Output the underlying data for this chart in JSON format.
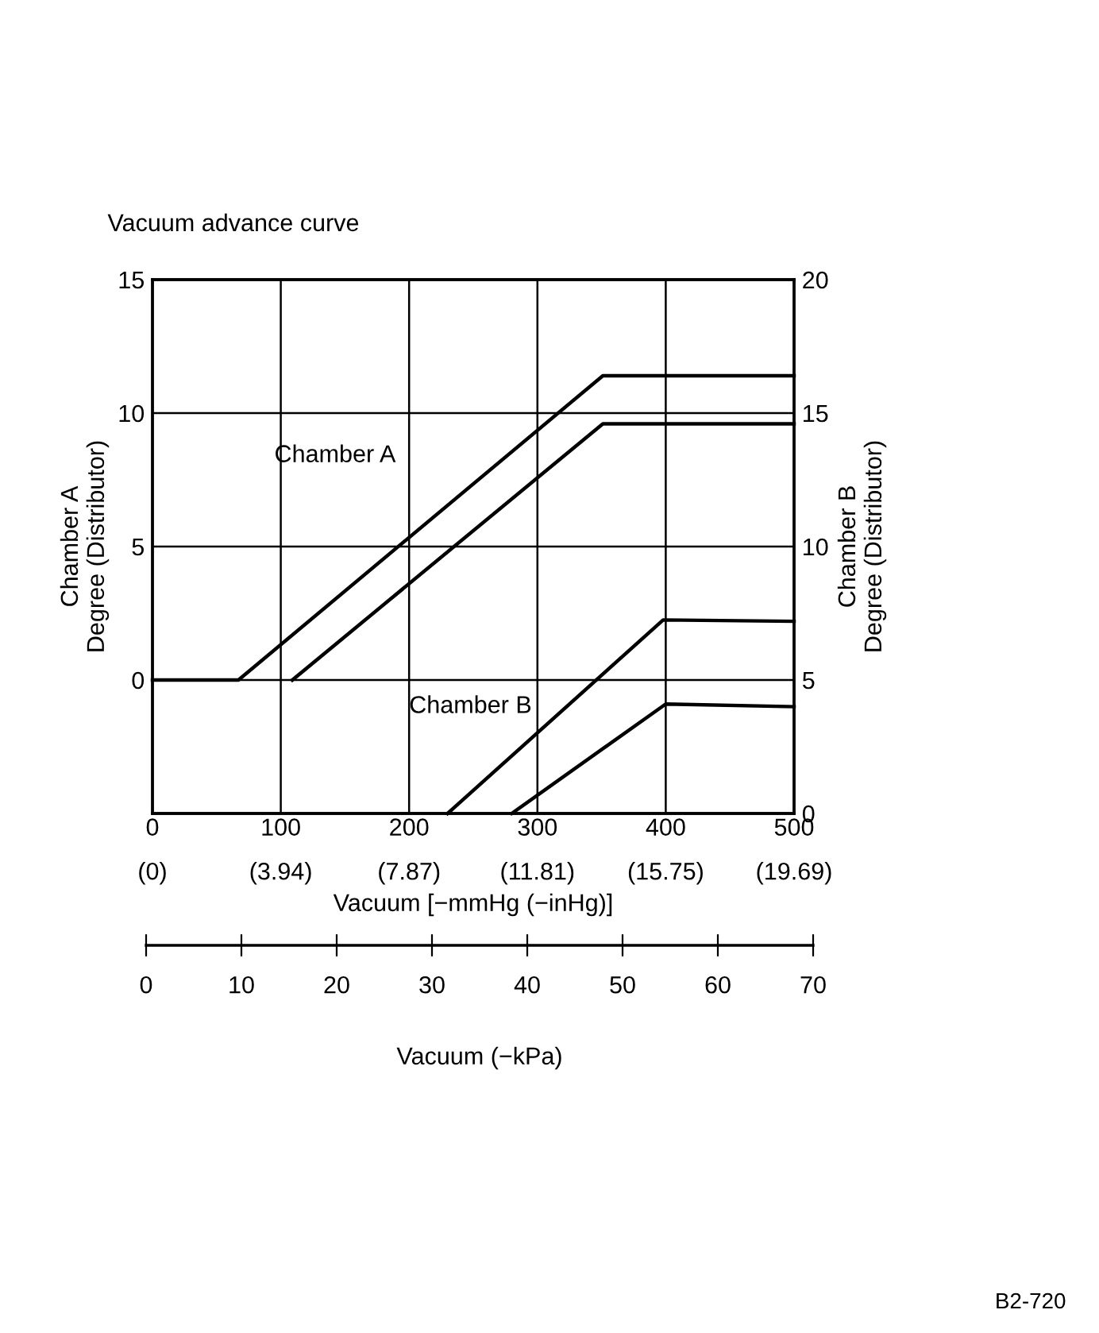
{
  "chart_data": {
    "type": "line",
    "title": "Vacuum advance curve",
    "xlabel": "Vacuum [−mmHg (−inHg)]",
    "ylabel": "Chamber A\nDegree (Distributor)",
    "y2label": "Chamber B\nDegree (Distributor)",
    "x2label": "Vacuum (−kPa)",
    "series": [
      {
        "x": [
          0,
          67,
          351,
          500
        ],
        "values": [
          0,
          0,
          11.4,
          11.4
        ],
        "color": "#000000"
      },
      {
        "x": [
          109,
          351,
          500
        ],
        "values": [
          0,
          9.6,
          9.6
        ],
        "color": "#000000"
      },
      {
        "x": [
          230,
          398,
          500
        ],
        "values": [
          0,
          7.25,
          7.2
        ],
        "color": "#000000",
        "axis": "y2"
      },
      {
        "x": [
          280,
          400,
          500
        ],
        "values": [
          0,
          4.1,
          4.0
        ],
        "color": "#000000",
        "axis": "y2"
      }
    ],
    "xlim": [
      0,
      500
    ],
    "xticks": [
      0,
      100,
      200,
      300,
      400,
      500
    ],
    "ylim": [
      -5,
      15
    ],
    "yticks": [
      0,
      5,
      10,
      15
    ],
    "y2lim": [
      0,
      20
    ],
    "y2ticks": [
      0,
      5,
      10,
      15,
      20
    ],
    "x2lim": [
      0,
      70
    ],
    "x2ticks": [
      0,
      10,
      20,
      30,
      40,
      50,
      60,
      70
    ],
    "grid": true,
    "line_style": "solid",
    "marker": "none",
    "annotations": [
      "Chamber A",
      "Chamber B",
      "B2-720",
      "(0)",
      "(3.94)",
      "(7.87)",
      "(11.81)",
      "(15.75)",
      "(19.69)"
    ]
  }
}
